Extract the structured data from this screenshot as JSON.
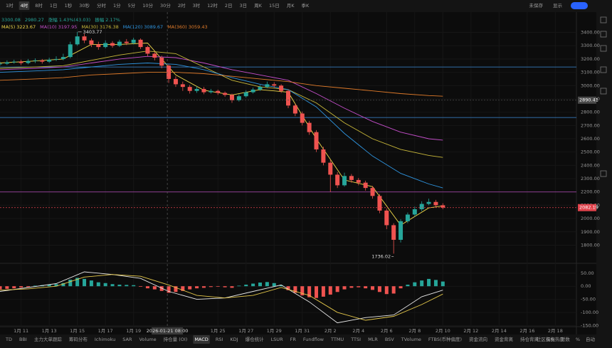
{
  "toolbar": [
    "1时",
    "4时",
    "8时",
    "1日",
    "1秒",
    "30秒",
    "分时",
    "1分",
    "5分",
    "10分",
    "30分",
    "2时",
    "3时",
    "12时",
    "2日",
    "3日",
    "周K",
    "15日",
    "月K",
    "季K"
  ],
  "toolbar_right": [
    "显示",
    "未保存"
  ],
  "info": [
    "3300.08",
    "2980.27",
    "涨幅 1.43%(43.03)",
    "振幅 2.17%"
  ],
  "indicator_tabs": [
    "TD",
    "BBI",
    "主力大单跟踪",
    "筹码分布",
    "Ichimoku",
    "SAR",
    "Volume",
    "持仓量 (OI)",
    "MACD",
    "RSI",
    "KDJ",
    "爆仓统计",
    "LSUR",
    "FR",
    "Fundflow",
    "TTMU",
    "TTSI",
    "MLR",
    "BSV",
    "TVolume",
    "FTBS(币种偏度)",
    "资金流向",
    "资金背离",
    "持仓背离",
    "买卖热度"
  ],
  "active_tab": "MACD",
  "bottom_right": [
    "社区指标",
    "对数",
    "%",
    "自动"
  ],
  "chart_data": [
    {
      "type": "candlestick",
      "x": [
        9.5,
        10,
        10.5,
        11,
        11.5,
        12,
        12.5,
        13,
        13.5,
        14,
        14.5,
        15,
        15.5,
        16,
        16.5,
        17,
        17.5,
        18,
        18.5,
        19,
        19.5,
        20,
        20.5,
        21,
        21.5,
        22,
        22.5,
        23,
        23.5,
        24,
        24.5,
        25,
        25.5,
        26,
        26.5,
        27,
        27.5,
        28,
        28.5,
        29,
        29.5,
        30,
        30.5,
        31,
        31.5,
        32,
        32.5,
        33,
        33.5,
        34,
        34.5,
        35,
        35.5,
        36,
        36.5,
        37,
        37.5,
        38,
        38.5,
        39,
        39.5,
        40,
        40.5,
        41
      ],
      "open": [
        3160,
        3165,
        3175,
        3180,
        3170,
        3185,
        3190,
        3180,
        3195,
        3200,
        3215,
        3310,
        3370,
        3340,
        3310,
        3290,
        3320,
        3300,
        3330,
        3320,
        3345,
        3290,
        3240,
        3210,
        3150,
        3050,
        3010,
        2990,
        2960,
        2975,
        2950,
        2960,
        2945,
        2930,
        2890,
        2920,
        2950,
        2970,
        2990,
        3010,
        3000,
        2960,
        2850,
        2790,
        2720,
        2650,
        2520,
        2420,
        2330,
        2250,
        2320,
        2290,
        2270,
        2230,
        2170,
        2060,
        1950,
        1840,
        1980,
        2030,
        2070,
        2110,
        2125,
        2100
      ],
      "high": [
        3180,
        3190,
        3195,
        3195,
        3200,
        3205,
        3200,
        3210,
        3220,
        3240,
        3330,
        3403.77,
        3390,
        3355,
        3330,
        3340,
        3335,
        3345,
        3350,
        3360,
        3355,
        3300,
        3255,
        3225,
        3160,
        3070,
        3030,
        3005,
        2995,
        2990,
        2975,
        2970,
        2955,
        2940,
        2935,
        2965,
        2985,
        3005,
        3030,
        3025,
        3010,
        2970,
        2865,
        2805,
        2735,
        2665,
        2540,
        2440,
        2350,
        2345,
        2335,
        2305,
        2285,
        2245,
        2185,
        2075,
        1965,
        1995,
        2045,
        2090,
        2130,
        2150,
        2140,
        2115
      ],
      "low": [
        3150,
        3155,
        3165,
        3155,
        3160,
        3170,
        3165,
        3170,
        3185,
        3190,
        3205,
        3300,
        3320,
        3290,
        3270,
        3280,
        3285,
        3290,
        3305,
        3310,
        3275,
        3220,
        3190,
        3130,
        3020,
        2990,
        2960,
        2940,
        2945,
        2935,
        2940,
        2930,
        2915,
        2870,
        2880,
        2910,
        2940,
        2960,
        2980,
        2985,
        2945,
        2830,
        2770,
        2700,
        2630,
        2500,
        2400,
        2200,
        2230,
        2240,
        2270,
        2250,
        2210,
        2150,
        2040,
        1920,
        1736.02,
        1820,
        1965,
        2015,
        2055,
        2100,
        2085,
        2070
      ],
      "close": [
        3165,
        3175,
        3180,
        3170,
        3185,
        3190,
        3180,
        3195,
        3200,
        3215,
        3310,
        3370,
        3340,
        3310,
        3290,
        3320,
        3300,
        3330,
        3320,
        3345,
        3290,
        3240,
        3210,
        3150,
        3050,
        3010,
        2990,
        2960,
        2975,
        2950,
        2960,
        2945,
        2930,
        2890,
        2920,
        2950,
        2970,
        2990,
        3010,
        3000,
        2960,
        2850,
        2790,
        2720,
        2650,
        2520,
        2420,
        2330,
        2250,
        2320,
        2290,
        2270,
        2230,
        2170,
        2060,
        1950,
        1840,
        1980,
        2030,
        2070,
        2110,
        2125,
        2100,
        2082.19
      ],
      "up_color": "#26a69a",
      "down_color": "#ef5350",
      "series": [
        {
          "name": "MA(5)",
          "legend_value": 3223.67,
          "color": "#f0d84a",
          "x": [
            9.5,
            12,
            14,
            16,
            18,
            20,
            22,
            24,
            26,
            28,
            30,
            32,
            34,
            36,
            38,
            40,
            41
          ],
          "values": [
            3170,
            3185,
            3200,
            3310,
            3310,
            3320,
            3080,
            2965,
            2930,
            2970,
            2950,
            2600,
            2290,
            2240,
            1950,
            2080,
            2095
          ]
        },
        {
          "name": "MA(10)",
          "legend_value": 3197.95,
          "color": "#c64fcc",
          "x": [
            9.5,
            12,
            14,
            16,
            18,
            20,
            22,
            24,
            26,
            28,
            30,
            32,
            34,
            36,
            38,
            40,
            41
          ],
          "values": [
            3120,
            3130,
            3140,
            3170,
            3200,
            3220,
            3210,
            3170,
            3120,
            3080,
            3040,
            2940,
            2830,
            2730,
            2650,
            2600,
            2590
          ]
        },
        {
          "name": "MA(30)",
          "legend_value": 3176.38,
          "color": "#c9b83a",
          "x": [
            9.5,
            12,
            14,
            16,
            18,
            20,
            22,
            24,
            26,
            28,
            30,
            32,
            34,
            36,
            38,
            40,
            41
          ],
          "values": [
            3130,
            3140,
            3150,
            3190,
            3230,
            3260,
            3240,
            3140,
            3040,
            2990,
            2970,
            2870,
            2720,
            2600,
            2520,
            2475,
            2460
          ]
        },
        {
          "name": "MA(120)",
          "legend_value": 3089.67,
          "color": "#2f95e0",
          "x": [
            9.5,
            12,
            14,
            16,
            18,
            20,
            22,
            24,
            26,
            28,
            30,
            32,
            34,
            36,
            38,
            40,
            41
          ],
          "values": [
            3100,
            3110,
            3120,
            3140,
            3160,
            3170,
            3160,
            3120,
            3060,
            3010,
            2970,
            2840,
            2640,
            2470,
            2340,
            2260,
            2230
          ]
        },
        {
          "name": "MA(360)",
          "legend_value": 3059.43,
          "color": "#e07b2a",
          "x": [
            9.5,
            12,
            14,
            16,
            18,
            20,
            22,
            24,
            26,
            28,
            30,
            32,
            34,
            36,
            38,
            40,
            41
          ],
          "values": [
            3040,
            3050,
            3060,
            3080,
            3090,
            3100,
            3100,
            3090,
            3070,
            3050,
            3030,
            3000,
            2980,
            2960,
            2940,
            2925,
            2920
          ]
        }
      ],
      "hlines": [
        {
          "value": 3140,
          "color": "#3b8ad9"
        },
        {
          "value": 2760,
          "color": "#3b8ad9"
        },
        {
          "value": 2200,
          "color": "#b44bb8"
        }
      ],
      "price_tags": [
        {
          "value": 2890.41,
          "color": "#4a4a4a"
        },
        {
          "value": 2082.19,
          "color": "#e0424b"
        }
      ],
      "crosshair": {
        "x": 21.4,
        "label": "2026-01-21 08:00"
      },
      "xlim": [
        9.5,
        50.5
      ],
      "xticks": [
        {
          "value": 11,
          "label": "1月 11"
        },
        {
          "value": 13,
          "label": "1月 13"
        },
        {
          "value": 15,
          "label": "1月 15"
        },
        {
          "value": 17,
          "label": "1月 17"
        },
        {
          "value": 19,
          "label": "1月 19"
        },
        {
          "value": 25,
          "label": "1月 25"
        },
        {
          "value": 27,
          "label": "1月 27"
        },
        {
          "value": 29,
          "label": "1月 29"
        },
        {
          "value": 31,
          "label": "1月 31"
        },
        {
          "value": 33,
          "label": "2月 2"
        },
        {
          "value": 35,
          "label": "2月 4"
        },
        {
          "value": 37,
          "label": "2月 6"
        },
        {
          "value": 39,
          "label": "2月 8"
        },
        {
          "value": 41,
          "label": "2月 10"
        },
        {
          "value": 43,
          "label": "2月 12"
        },
        {
          "value": 45,
          "label": "2月 14"
        },
        {
          "value": 47,
          "label": "2月 16"
        },
        {
          "value": 49,
          "label": "2月 18"
        }
      ],
      "ylim": [
        1690,
        3510
      ],
      "yticks": [
        {
          "value": 3400,
          "label": "3400.00"
        },
        {
          "value": 3300,
          "label": "3300.00"
        },
        {
          "value": 3200,
          "label": "3200.00"
        },
        {
          "value": 3100,
          "label": "3100.00"
        },
        {
          "value": 3000,
          "label": "3000.00"
        },
        {
          "value": 2900,
          "label": "2900.00"
        },
        {
          "value": 2800,
          "label": "2800.00"
        },
        {
          "value": 2700,
          "label": "2700.00"
        },
        {
          "value": 2600,
          "label": "2600.00"
        },
        {
          "value": 2500,
          "label": "2500.00"
        },
        {
          "value": 2400,
          "label": "2400.00"
        },
        {
          "value": 2300,
          "label": "2300.00"
        },
        {
          "value": 2200,
          "label": "2200.00"
        },
        {
          "value": 2100,
          "label": "2100.00"
        },
        {
          "value": 2000,
          "label": "2000.00"
        },
        {
          "value": 1900,
          "label": "1900.00"
        },
        {
          "value": 1800,
          "label": "1800.00"
        }
      ]
    },
    {
      "type": "macd",
      "x": [
        9.5,
        10,
        10.5,
        11,
        11.5,
        12,
        12.5,
        13,
        13.5,
        14,
        14.5,
        15,
        15.5,
        16,
        16.5,
        17,
        17.5,
        18,
        18.5,
        19,
        19.5,
        20,
        20.5,
        21,
        21.5,
        22,
        22.5,
        23,
        23.5,
        24,
        24.5,
        25,
        25.5,
        26,
        26.5,
        27,
        27.5,
        28,
        28.5,
        29,
        29.5,
        30,
        30.5,
        31,
        31.5,
        32,
        32.5,
        33,
        33.5,
        34,
        34.5,
        35,
        35.5,
        36,
        36.5,
        37,
        37.5,
        38,
        38.5,
        39,
        39.5,
        40,
        40.5,
        41
      ],
      "values": [
        -12,
        -10,
        -8,
        -5,
        -3,
        2,
        4,
        6,
        8,
        12,
        25,
        32,
        28,
        22,
        15,
        12,
        8,
        6,
        5,
        4,
        -2,
        -8,
        -12,
        -18,
        -25,
        -22,
        -18,
        -12,
        -8,
        -6,
        -3,
        -2,
        -4,
        -6,
        2,
        6,
        10,
        14,
        16,
        12,
        4,
        -15,
        -25,
        -35,
        -42,
        -45,
        -40,
        -32,
        -22,
        -12,
        -6,
        -4,
        -8,
        -14,
        -22,
        -30,
        -28,
        -8,
        6,
        15,
        22,
        28,
        24,
        18
      ],
      "up_color": "#26a69a",
      "down_color": "#ef5350",
      "series": [
        {
          "name": "DIF",
          "color": "#e8e8e8",
          "x": [
            9.5,
            11.5,
            13.5,
            15.5,
            17.5,
            19.5,
            21.5,
            23.5,
            25.5,
            27.5,
            29.5,
            31.5,
            33.5,
            35.5,
            37.5,
            39.5,
            41
          ],
          "values": [
            -20,
            -5,
            10,
            55,
            45,
            30,
            -20,
            -50,
            -45,
            -20,
            5,
            -60,
            -140,
            -120,
            -110,
            -40,
            -15
          ]
        },
        {
          "name": "DEA",
          "color": "#e5c84a",
          "x": [
            9.5,
            11.5,
            13.5,
            15.5,
            17.5,
            19.5,
            21.5,
            23.5,
            25.5,
            27.5,
            29.5,
            31.5,
            33.5,
            35.5,
            37.5,
            39.5,
            41
          ],
          "values": [
            -15,
            -10,
            0,
            35,
            45,
            38,
            5,
            -35,
            -45,
            -35,
            -5,
            -35,
            -100,
            -130,
            -115,
            -70,
            -30
          ]
        }
      ],
      "ylim": [
        -160,
        74
      ],
      "yticks": [
        {
          "value": 50,
          "label": "50.00"
        },
        {
          "value": 0,
          "label": "0.00"
        },
        {
          "value": -50,
          "label": "-50.00"
        },
        {
          "value": -100,
          "label": "-100.00"
        },
        {
          "value": -150,
          "label": "-150.00"
        }
      ]
    }
  ]
}
